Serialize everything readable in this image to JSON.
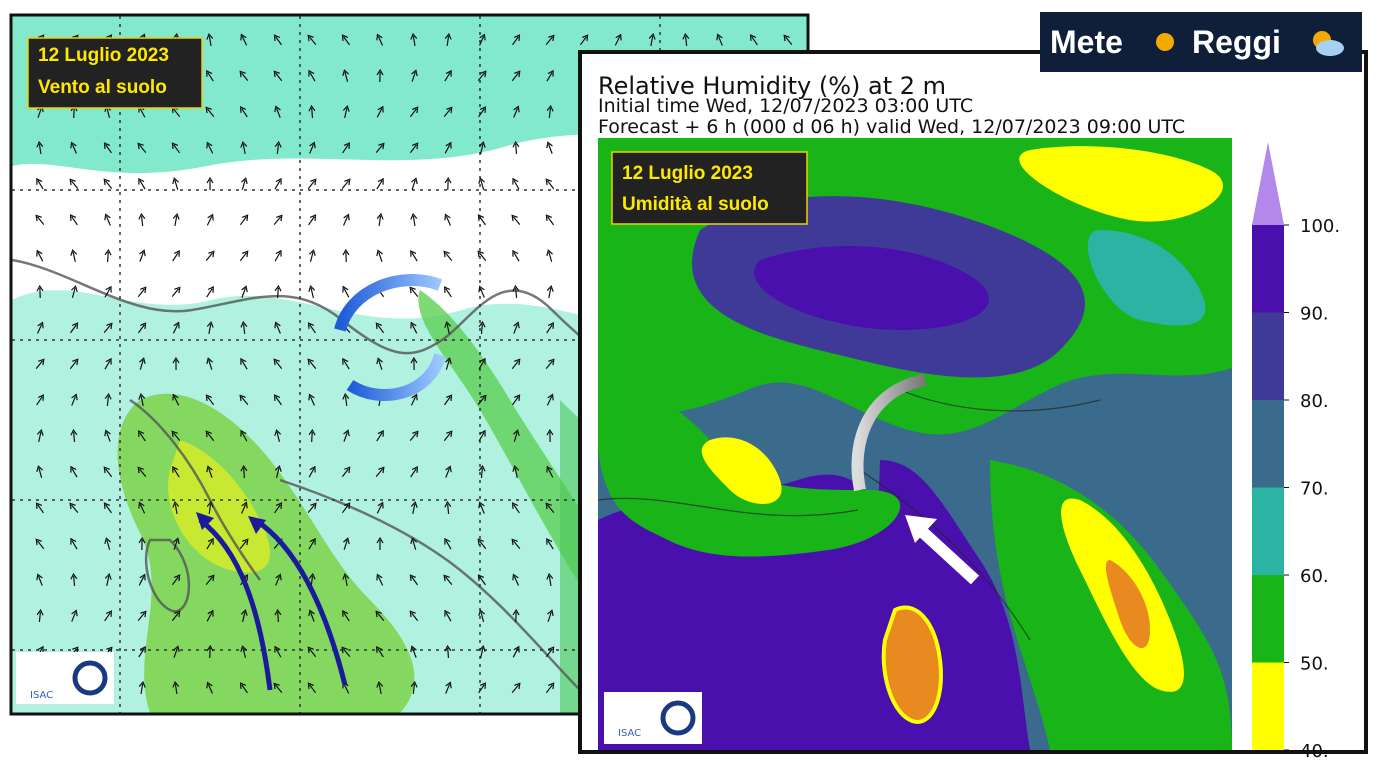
{
  "logo": {
    "text_a": "Mete",
    "text_b": "Reggi"
  },
  "left_panel": {
    "date": "12 Luglio 2023",
    "caption": "Vento al suolo",
    "credit": "ISAC"
  },
  "right_panel": {
    "title": "Relative Humidity (%) at 2 m",
    "initial": "Initial time  Wed, 12/07/2023  03:00 UTC",
    "forecast": "Forecast  +   6 h  (000 d 06 h)  valid Wed, 12/07/2023 09:00 UTC",
    "date": "12 Luglio 2023",
    "caption": "Umidità al suolo",
    "credit": "ISAC"
  },
  "colorbar": {
    "ticks": [
      {
        "value": 100,
        "label": "100."
      },
      {
        "value": 90,
        "label": "90."
      },
      {
        "value": 80,
        "label": "80."
      },
      {
        "value": 70,
        "label": "70."
      },
      {
        "value": 60,
        "label": "60."
      },
      {
        "value": 50,
        "label": "50."
      },
      {
        "value": 40,
        "label": "40."
      }
    ],
    "colors": [
      "#4a10ad",
      "#3f3a98",
      "#3a6b8c",
      "#2bb3a3",
      "#18b418",
      "#ffff00"
    ],
    "extend_color": "#b487ea"
  }
}
